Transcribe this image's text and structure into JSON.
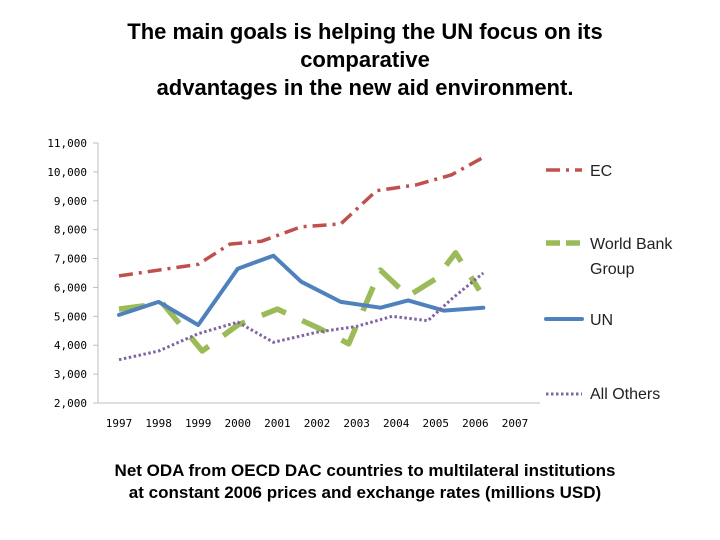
{
  "slide": {
    "title_lines": [
      "The main goals is helping the UN focus on its",
      "comparative",
      "advantages in the new aid environment."
    ],
    "caption_lines": [
      "Net ODA from OECD DAC countries to multilateral institutions",
      "at constant 2006 prices and exchange rates (millions USD)"
    ]
  },
  "chart_data": {
    "type": "line",
    "title": "",
    "xlabel": "",
    "ylabel": "",
    "x": [
      "1997",
      "1998",
      "1999",
      "2000",
      "2001",
      "2002",
      "2003",
      "2004",
      "2005",
      "2006",
      "2007"
    ],
    "ylim": [
      2000,
      11000
    ],
    "yticks": [
      "2,000",
      "3,000",
      "4,000",
      "5,000",
      "6,000",
      "7,000",
      "8,000",
      "9,000",
      "10,000",
      "11,000"
    ],
    "grid": false,
    "legend": "right",
    "series": [
      {
        "name": "EC",
        "color": "#c0504d",
        "style": "dash-dot",
        "points": [
          [
            0,
            6400
          ],
          [
            1,
            6600
          ],
          [
            2,
            6800
          ],
          [
            2.8,
            7500
          ],
          [
            3.6,
            7600
          ],
          [
            4.6,
            8100
          ],
          [
            5.6,
            8200
          ],
          [
            6.5,
            9350
          ],
          [
            7.5,
            9550
          ],
          [
            8.4,
            9900
          ],
          [
            9.2,
            10500
          ]
        ]
      },
      {
        "name": "World Bank Group",
        "color": "#9bbb59",
        "style": "long-dash",
        "points": [
          [
            0,
            5250
          ],
          [
            1.1,
            5450
          ],
          [
            2.1,
            3800
          ],
          [
            3,
            4700
          ],
          [
            4,
            5250
          ],
          [
            5.1,
            4550
          ],
          [
            5.8,
            4050
          ],
          [
            6.6,
            6600
          ],
          [
            7.3,
            5700
          ],
          [
            8,
            6300
          ],
          [
            8.5,
            7200
          ],
          [
            9.1,
            5900
          ]
        ]
      },
      {
        "name": "UN",
        "color": "#4f81bd",
        "style": "solid",
        "points": [
          [
            0,
            5050
          ],
          [
            1,
            5500
          ],
          [
            2,
            4700
          ],
          [
            3,
            6650
          ],
          [
            3.9,
            7100
          ],
          [
            4.6,
            6200
          ],
          [
            5.6,
            5500
          ],
          [
            6.6,
            5300
          ],
          [
            7.3,
            5550
          ],
          [
            8.2,
            5200
          ],
          [
            9.2,
            5300
          ]
        ]
      },
      {
        "name": "All Others",
        "color": "#8064a2",
        "style": "dotted",
        "points": [
          [
            0,
            3500
          ],
          [
            1,
            3800
          ],
          [
            2,
            4400
          ],
          [
            3,
            4800
          ],
          [
            3.9,
            4100
          ],
          [
            5,
            4450
          ],
          [
            6,
            4650
          ],
          [
            6.9,
            5000
          ],
          [
            7.8,
            4850
          ],
          [
            8.4,
            5600
          ],
          [
            9.2,
            6500
          ]
        ]
      }
    ]
  }
}
